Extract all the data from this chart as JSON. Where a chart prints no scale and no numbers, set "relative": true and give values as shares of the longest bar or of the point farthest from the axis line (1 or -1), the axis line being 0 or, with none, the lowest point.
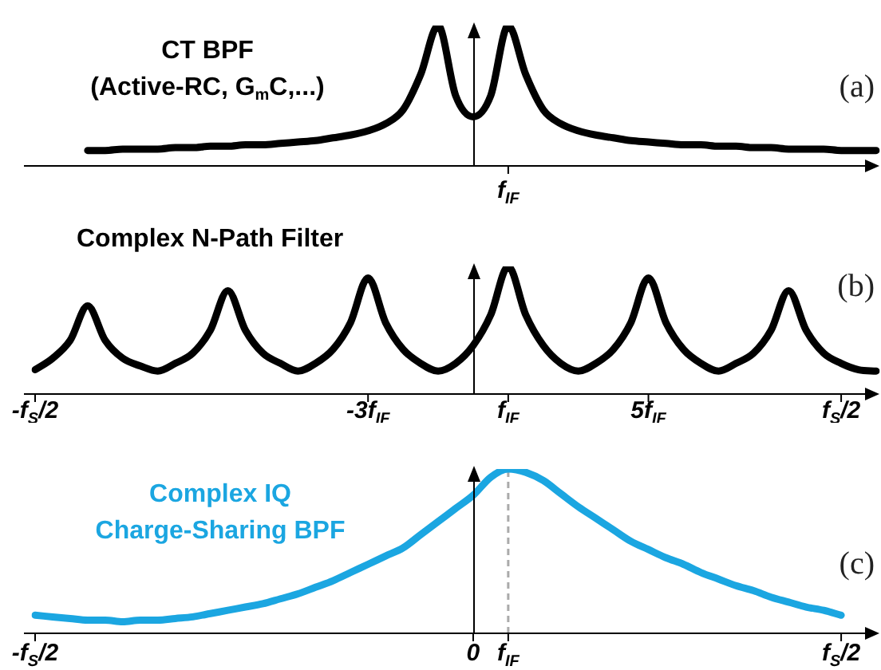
{
  "chart_data": [
    {
      "type": "line",
      "relative": true,
      "title": "CT BPF\n(Active-RC, G$_{m}$C,...)",
      "annotations": [
        "(a)",
        "f$_{IF}$"
      ],
      "color": "#000000",
      "categories": [
        null,
        null,
        null,
        null,
        null,
        null,
        null,
        null,
        null,
        null,
        null,
        null,
        null,
        null,
        null,
        null,
        null,
        null,
        null,
        null,
        null,
        null,
        null,
        null,
        null,
        null,
        null,
        null,
        null,
        null,
        null,
        null,
        null,
        null,
        null,
        null,
        null,
        null,
        null,
        null,
        null,
        null,
        null,
        null,
        null,
        null,
        null,
        null,
        null
      ],
      "values": [
        null,
        null,
        null,
        0.11,
        0.11,
        0.12,
        0.12,
        0.12,
        0.13,
        0.13,
        0.14,
        0.14,
        0.15,
        0.15,
        0.16,
        0.17,
        0.18,
        0.2,
        0.22,
        0.25,
        0.3,
        0.4,
        0.65,
        1,
        0.5,
        0.35,
        0.5,
        1,
        0.65,
        0.4,
        0.3,
        0.25,
        0.22,
        0.2,
        0.18,
        0.17,
        0.16,
        0.15,
        0.15,
        0.14,
        0.14,
        0.13,
        0.13,
        0.12,
        0.12,
        0.12,
        0.11,
        0.11,
        0.11
      ]
    },
    {
      "type": "line",
      "relative": true,
      "title": "Complex N-Path Filter",
      "annotations": [
        "(b)"
      ],
      "color": "#000000",
      "categories": [
        "-f$_{S}$/2",
        null,
        null,
        null,
        null,
        null,
        null,
        null,
        null,
        null,
        null,
        null,
        null,
        null,
        null,
        null,
        null,
        null,
        null,
        "-3f$_{IF}$",
        null,
        null,
        null,
        null,
        null,
        null,
        null,
        "f$_{IF}$",
        null,
        null,
        null,
        null,
        null,
        null,
        null,
        "5f$_{IF}$",
        null,
        null,
        null,
        null,
        null,
        null,
        null,
        null,
        null,
        null,
        "f$_{S}$/2",
        null,
        null
      ],
      "values": [
        0.19,
        0.28,
        0.42,
        0.69,
        0.42,
        0.28,
        0.22,
        0.18,
        0.24,
        0.32,
        0.5,
        0.81,
        0.5,
        0.32,
        0.24,
        0.18,
        0.24,
        0.35,
        0.56,
        0.91,
        0.56,
        0.35,
        0.24,
        0.18,
        0.24,
        0.38,
        0.62,
        1,
        0.62,
        0.38,
        0.24,
        0.18,
        0.24,
        0.35,
        0.56,
        0.91,
        0.56,
        0.35,
        0.24,
        0.18,
        0.24,
        0.32,
        0.5,
        0.81,
        0.5,
        0.32,
        0.24,
        0.19,
        0.18
      ]
    },
    {
      "type": "line",
      "relative": true,
      "title": "Complex IQ\nCharge-Sharing BPF",
      "annotations": [
        "(c)"
      ],
      "color": "#1ba6e1",
      "categories": [
        "-f$_{S}$/2",
        null,
        null,
        null,
        null,
        null,
        null,
        null,
        null,
        null,
        null,
        null,
        null,
        null,
        null,
        null,
        null,
        null,
        null,
        null,
        null,
        null,
        null,
        null,
        null,
        "0",
        null,
        "f$_{IF}$",
        null,
        null,
        null,
        null,
        null,
        null,
        null,
        null,
        null,
        null,
        null,
        null,
        null,
        null,
        null,
        null,
        null,
        null,
        "f$_{S}$/2",
        null,
        null
      ],
      "ref_lines": [
        {
          "axis": "x",
          "value": "f$_{IF}$",
          "color": "#aaaaaa",
          "line_style": "dashed"
        }
      ],
      "values": [
        0.11,
        0.1,
        0.09,
        0.08,
        0.08,
        0.07,
        0.08,
        0.08,
        0.09,
        0.1,
        0.12,
        0.14,
        0.16,
        0.18,
        0.21,
        0.24,
        0.28,
        0.32,
        0.37,
        0.42,
        0.47,
        0.52,
        0.6,
        0.68,
        0.76,
        0.84,
        0.95,
        1,
        0.98,
        0.93,
        0.85,
        0.77,
        0.7,
        0.63,
        0.56,
        0.51,
        0.46,
        0.42,
        0.37,
        0.33,
        0.29,
        0.26,
        0.22,
        0.19,
        0.16,
        0.14,
        0.11,
        null,
        null
      ]
    }
  ]
}
